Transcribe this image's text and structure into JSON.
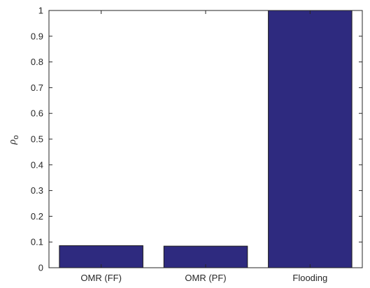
{
  "chart_data": {
    "type": "bar",
    "categories": [
      "OMR (FF)",
      "OMR (PF)",
      "Flooding"
    ],
    "values": [
      0.086,
      0.084,
      1.0
    ],
    "ylabel": "ρ",
    "ylabel_subscript": "o",
    "xlabel": "",
    "ylim": [
      0,
      1
    ],
    "yticks": [
      "0",
      "0.1",
      "0.2",
      "0.3",
      "0.4",
      "0.5",
      "0.6",
      "0.7",
      "0.8",
      "0.9",
      "1"
    ],
    "bar_color": "#2e2a7f",
    "grid": false,
    "legend": "none"
  }
}
